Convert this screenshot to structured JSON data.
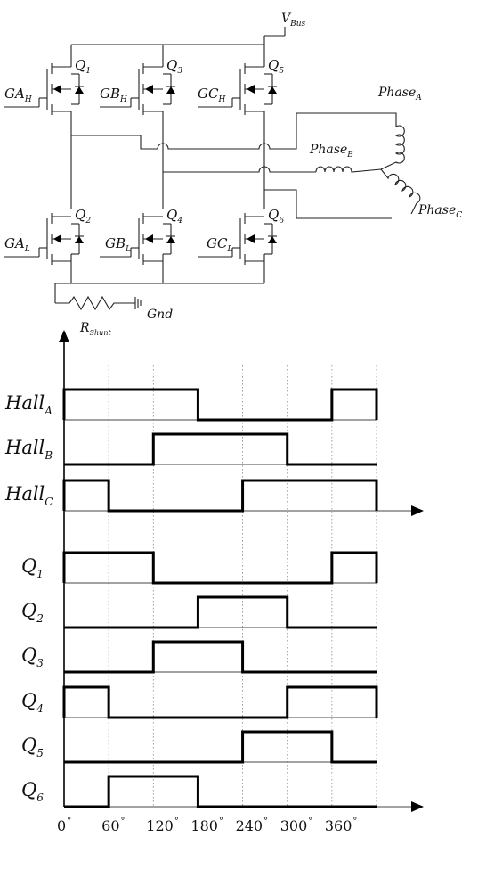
{
  "circuit": {
    "supply": {
      "base": "V",
      "sub": "Bus"
    },
    "ground": "Gnd",
    "shunt": {
      "base": "R",
      "sub": "Shunt"
    },
    "gates": [
      {
        "base": "GA",
        "sub": "H"
      },
      {
        "base": "GB",
        "sub": "H"
      },
      {
        "base": "GC",
        "sub": "H"
      },
      {
        "base": "GA",
        "sub": "L"
      },
      {
        "base": "GB",
        "sub": "L"
      },
      {
        "base": "GC",
        "sub": "L"
      }
    ],
    "switches": [
      {
        "base": "Q",
        "sub": "1"
      },
      {
        "base": "Q",
        "sub": "3"
      },
      {
        "base": "Q",
        "sub": "5"
      },
      {
        "base": "Q",
        "sub": "2"
      },
      {
        "base": "Q",
        "sub": "4"
      },
      {
        "base": "Q",
        "sub": "6"
      }
    ],
    "phases": [
      {
        "base": "Phase",
        "sub": "A"
      },
      {
        "base": "Phase",
        "sub": "B"
      },
      {
        "base": "Phase",
        "sub": "C"
      }
    ]
  },
  "timing": {
    "x_ticks": [
      0,
      60,
      120,
      180,
      240,
      300,
      360
    ],
    "x_range": [
      0,
      420
    ],
    "degree_symbol": "°",
    "signals": [
      {
        "base": "Hall",
        "sub": "A",
        "levels": [
          [
            0,
            180,
            1
          ],
          [
            180,
            360,
            0
          ],
          [
            360,
            420,
            1
          ]
        ]
      },
      {
        "base": "Hall",
        "sub": "B",
        "levels": [
          [
            0,
            120,
            0
          ],
          [
            120,
            300,
            1
          ],
          [
            300,
            420,
            0
          ]
        ]
      },
      {
        "base": "Hall",
        "sub": "C",
        "levels": [
          [
            0,
            60,
            1
          ],
          [
            60,
            240,
            0
          ],
          [
            240,
            420,
            1
          ]
        ]
      },
      {
        "base": "Q",
        "sub": "1",
        "levels": [
          [
            0,
            120,
            1
          ],
          [
            120,
            360,
            0
          ],
          [
            360,
            420,
            1
          ]
        ]
      },
      {
        "base": "Q",
        "sub": "2",
        "levels": [
          [
            0,
            180,
            0
          ],
          [
            180,
            300,
            1
          ],
          [
            300,
            420,
            0
          ]
        ]
      },
      {
        "base": "Q",
        "sub": "3",
        "levels": [
          [
            0,
            120,
            0
          ],
          [
            120,
            240,
            1
          ],
          [
            240,
            420,
            0
          ]
        ]
      },
      {
        "base": "Q",
        "sub": "4",
        "levels": [
          [
            0,
            60,
            1
          ],
          [
            60,
            300,
            0
          ],
          [
            300,
            420,
            1
          ]
        ]
      },
      {
        "base": "Q",
        "sub": "5",
        "levels": [
          [
            0,
            240,
            0
          ],
          [
            240,
            360,
            1
          ],
          [
            360,
            420,
            0
          ]
        ]
      },
      {
        "base": "Q",
        "sub": "6",
        "levels": [
          [
            0,
            60,
            0
          ],
          [
            60,
            180,
            1
          ],
          [
            180,
            420,
            0
          ]
        ]
      }
    ]
  }
}
